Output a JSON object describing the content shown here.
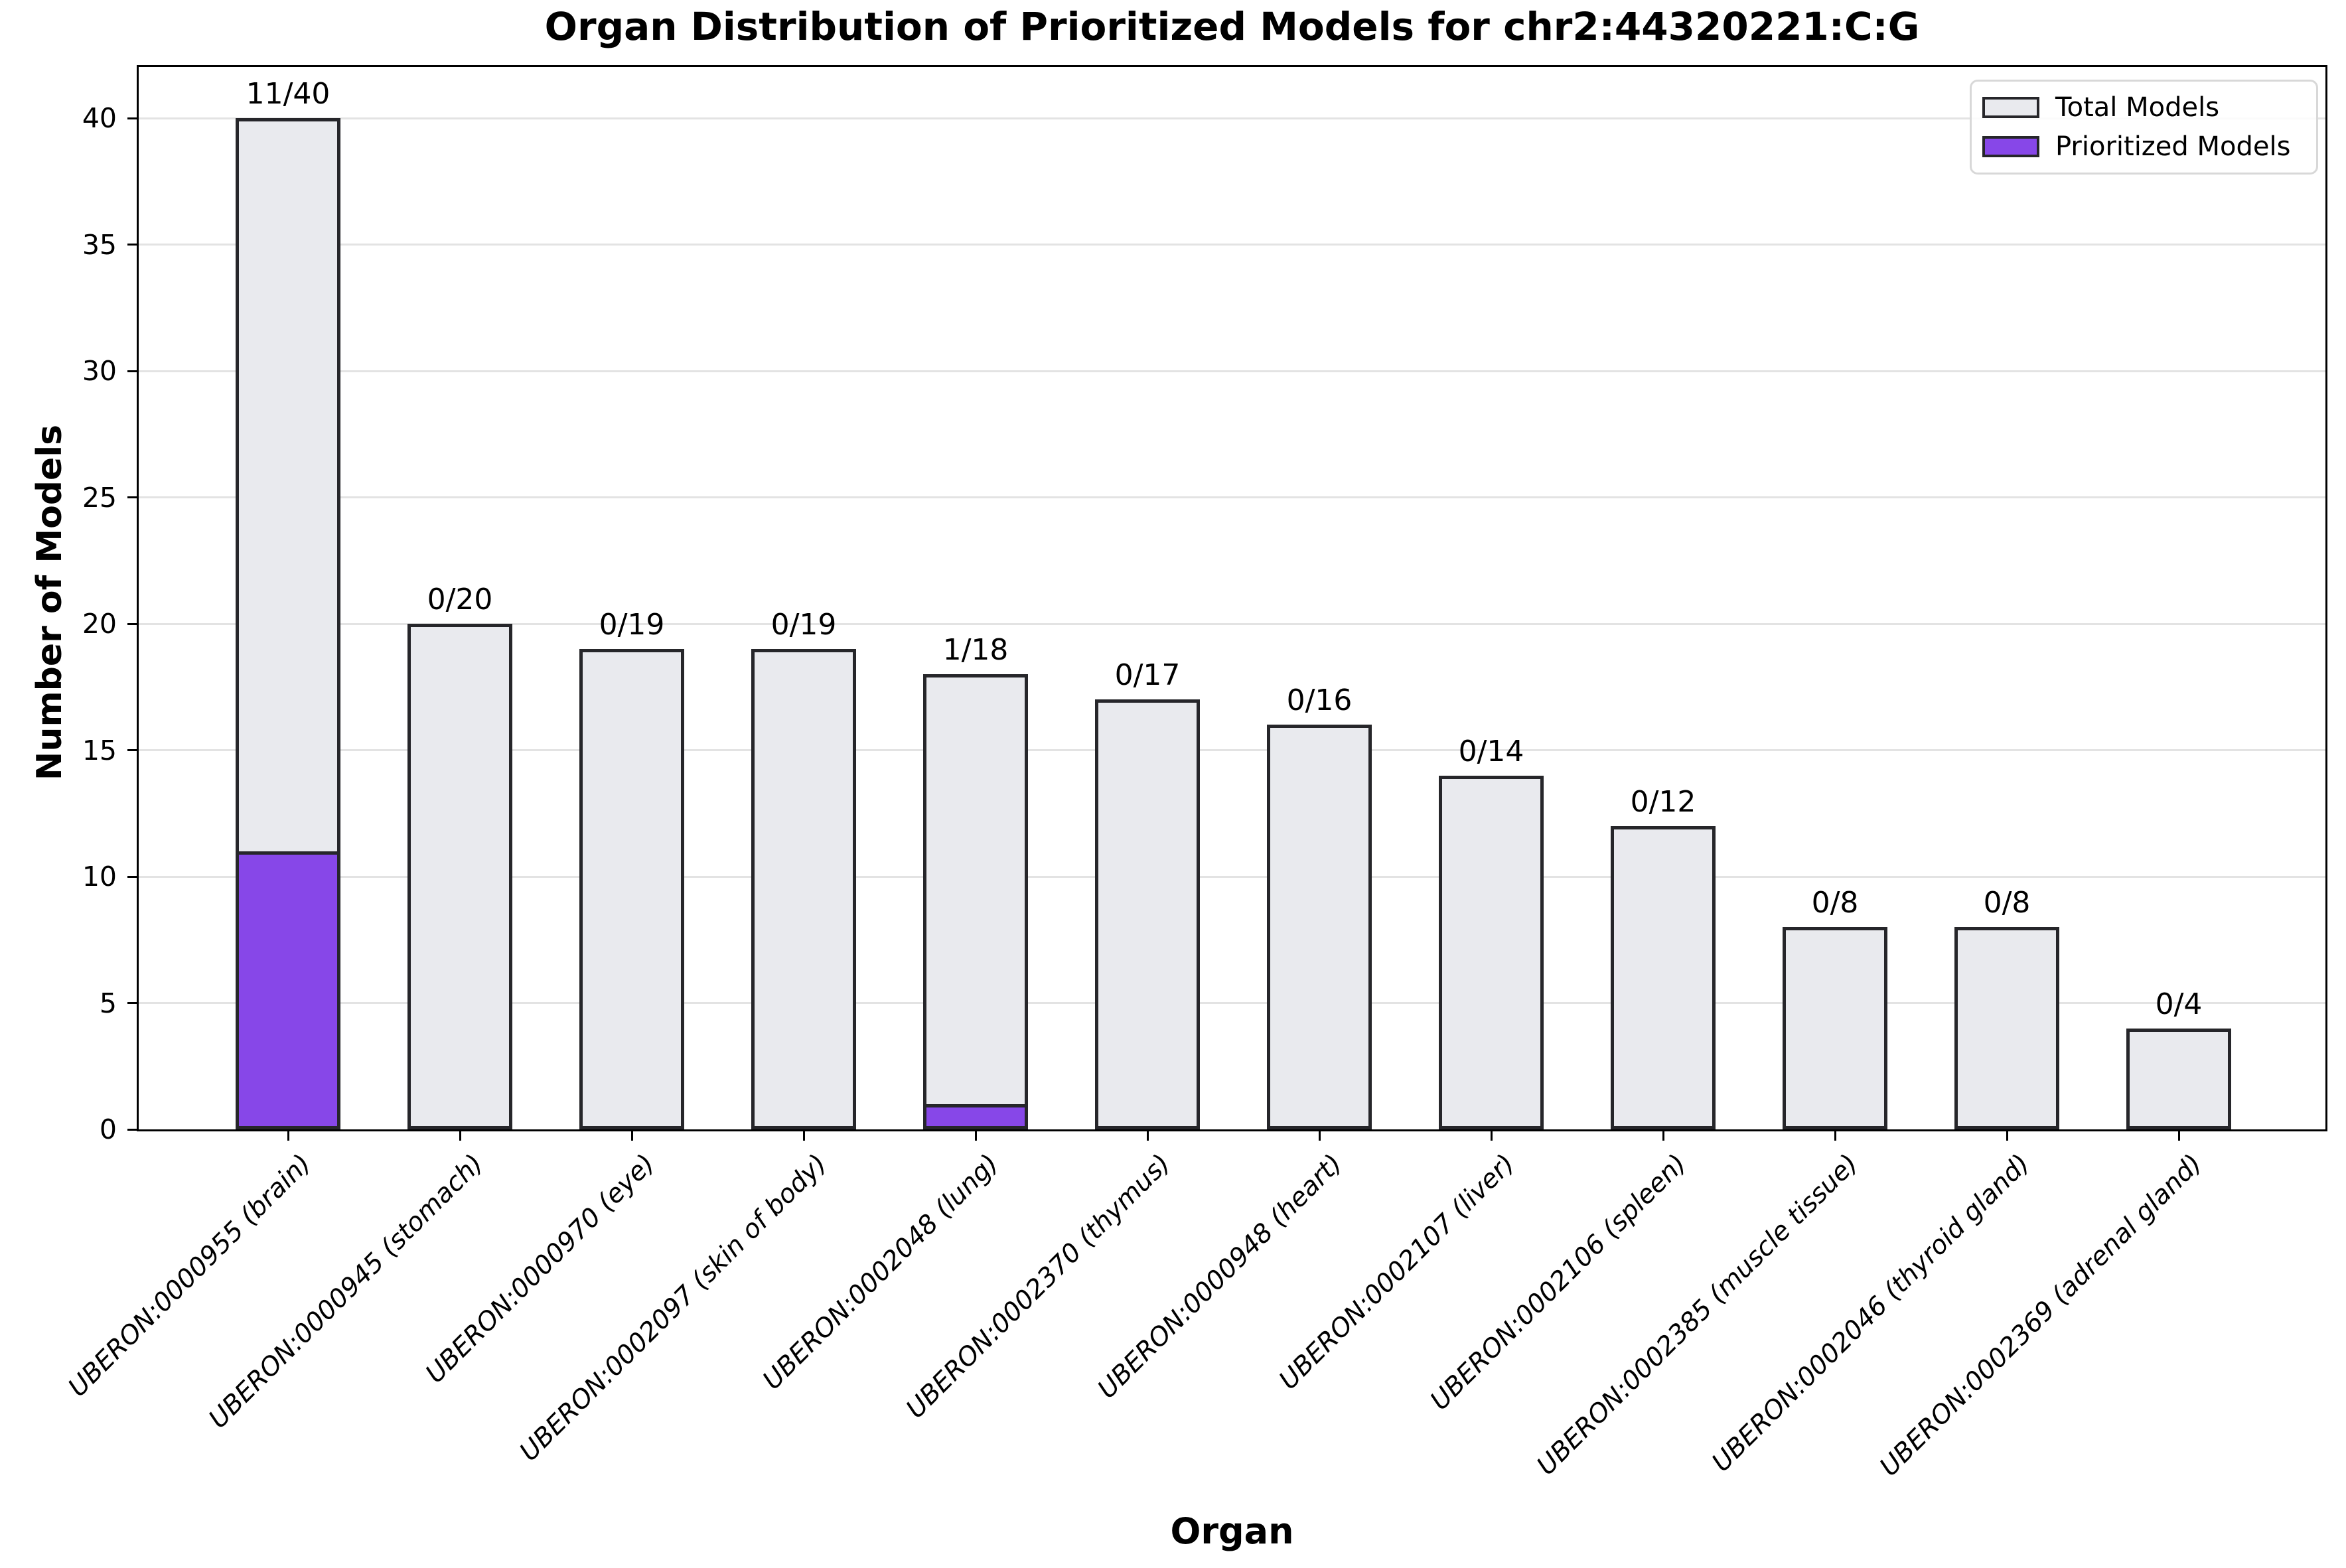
{
  "title": "Organ Distribution of Prioritized Models for chr2:44320221:C:G",
  "chart_data": {
    "type": "bar",
    "title": "Organ Distribution of Prioritized Models for chr2:44320221:C:G",
    "xlabel": "Organ",
    "ylabel": "Number of Models",
    "ylim": [
      0,
      42
    ],
    "yticks": [
      0,
      5,
      10,
      15,
      20,
      25,
      30,
      35,
      40
    ],
    "grid": "horizontal",
    "legend_position": "upper-right",
    "categories": [
      "UBERON:0000955 (brain)",
      "UBERON:0000945 (stomach)",
      "UBERON:0000970 (eye)",
      "UBERON:0002097 (skin of body)",
      "UBERON:0002048 (lung)",
      "UBERON:0002370 (thymus)",
      "UBERON:0000948 (heart)",
      "UBERON:0002107 (liver)",
      "UBERON:0002106 (spleen)",
      "UBERON:0002385 (muscle tissue)",
      "UBERON:0002046 (thyroid gland)",
      "UBERON:0002369 (adrenal gland)"
    ],
    "series": [
      {
        "name": "Total Models",
        "color": "#e9eaee",
        "values": [
          40,
          20,
          19,
          19,
          18,
          17,
          16,
          14,
          12,
          8,
          8,
          4
        ]
      },
      {
        "name": "Prioritized Models",
        "color": "#8747e8",
        "values": [
          11,
          0,
          0,
          0,
          1,
          0,
          0,
          0,
          0,
          0,
          0,
          0
        ]
      }
    ],
    "bar_annotations": [
      "11/40",
      "0/20",
      "0/19",
      "0/19",
      "1/18",
      "0/17",
      "0/16",
      "0/14",
      "0/12",
      "0/8",
      "0/8",
      "0/4"
    ],
    "bar_edge_color": "#26262a",
    "gridline_color": "#e3e3e3"
  }
}
